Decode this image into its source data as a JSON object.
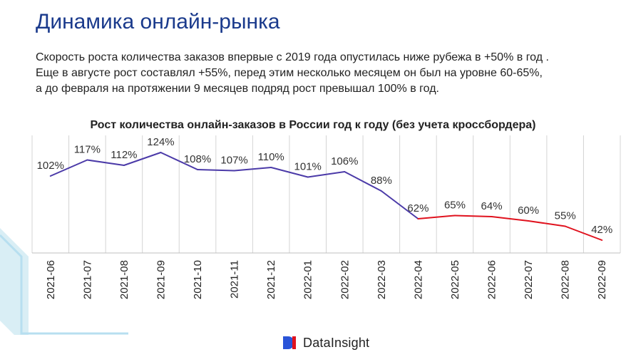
{
  "header": {
    "title": "Динамика онлайн-рынка",
    "subtitle_lines": [
      "Скорость роста количества заказов впервые с 2019 года опустилась ниже рубежа в +50% в год .",
      "Еще в августе рост составлял +55%, перед этим несколько месяцем он был на уровне 60-65%,",
      "а до февраля на протяжении 9 месяцев подряд рост превышал 100% в год."
    ]
  },
  "chart_data": {
    "type": "line",
    "title": "Рост количества онлайн-заказов в России год к году (без учета кроссбордера)",
    "x": [
      "2021-06",
      "2021-07",
      "2021-08",
      "2021-09",
      "2021-10",
      "2021-11",
      "2021-12",
      "2022-01",
      "2022-02",
      "2022-03",
      "2022-04",
      "2022-05",
      "2022-06",
      "2022-07",
      "2022-08",
      "2022-09"
    ],
    "values": [
      102,
      117,
      112,
      124,
      108,
      107,
      110,
      101,
      106,
      88,
      62,
      65,
      64,
      60,
      55,
      42
    ],
    "data_labels": [
      "102%",
      "117%",
      "112%",
      "124%",
      "108%",
      "107%",
      "110%",
      "101%",
      "106%",
      "88%",
      "62%",
      "65%",
      "64%",
      "60%",
      "55%",
      "42%"
    ],
    "ylim": [
      30,
      140
    ],
    "grid": "vertical",
    "segment_colors": {
      "before": "#4b3aa8",
      "after": "#e0121e"
    },
    "color_change_index": 10
  },
  "logo": {
    "text": "DataInsight",
    "mark": "DI",
    "color": "#2a54d8"
  }
}
